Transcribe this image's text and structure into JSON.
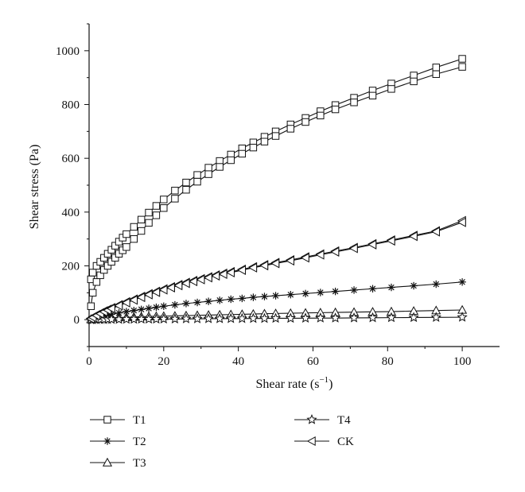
{
  "chart_data": {
    "type": "line",
    "title": "",
    "xlabel": "Shear rate (s",
    "xlabel_sup": "−1",
    "xlabel_end": ")",
    "ylabel": "Shear stress (Pa)",
    "xlim": [
      0,
      110
    ],
    "ylim": [
      -100,
      1100
    ],
    "xticks": [
      0,
      20,
      40,
      60,
      80,
      100
    ],
    "yticks": [
      0,
      200,
      400,
      600,
      800,
      1000
    ],
    "grid": false,
    "legend_position": "bottom",
    "series": [
      {
        "name": "T1",
        "marker": "square",
        "x": [
          0.5,
          1,
          2,
          3,
          4,
          5,
          6,
          7,
          8,
          9,
          10,
          12,
          14,
          16,
          18,
          20,
          23,
          26,
          29,
          32,
          35,
          38,
          41,
          44,
          47,
          50,
          54,
          58,
          62,
          66,
          71,
          76,
          81,
          87,
          93,
          100
        ],
        "y": [
          150,
          175,
          200,
          215,
          230,
          245,
          260,
          275,
          290,
          305,
          318,
          345,
          372,
          398,
          423,
          447,
          480,
          510,
          538,
          565,
          590,
          614,
          637,
          659,
          680,
          700,
          726,
          750,
          775,
          798,
          825,
          852,
          878,
          908,
          938,
          970
        ],
        "y_down": [
          50,
          100,
          140,
          165,
          185,
          200,
          215,
          230,
          245,
          258,
          270,
          300,
          330,
          360,
          388,
          415,
          450,
          483,
          513,
          541,
          568,
          593,
          617,
          640,
          662,
          683,
          710,
          735,
          759,
          782,
          808,
          833,
          858,
          886,
          913,
          940
        ]
      },
      {
        "name": "T2",
        "marker": "asterisk",
        "x": [
          0.5,
          1,
          2,
          3,
          4,
          5,
          6,
          8,
          10,
          12,
          14,
          16,
          18,
          20,
          23,
          26,
          29,
          32,
          35,
          38,
          41,
          44,
          47,
          50,
          54,
          58,
          62,
          66,
          71,
          76,
          81,
          87,
          93,
          100
        ],
        "y": [
          2,
          4,
          8,
          11,
          14,
          17,
          20,
          25,
          30,
          34,
          38,
          42,
          46,
          50,
          55,
          60,
          64,
          68,
          72,
          76,
          79,
          83,
          86,
          89,
          93,
          97,
          101,
          105,
          110,
          115,
          120,
          126,
          132,
          140
        ]
      },
      {
        "name": "T3",
        "marker": "triangle-up",
        "x": [
          0.5,
          1,
          2,
          3,
          4,
          5,
          6,
          8,
          10,
          12,
          14,
          16,
          18,
          20,
          23,
          26,
          29,
          32,
          35,
          38,
          41,
          44,
          47,
          50,
          54,
          58,
          62,
          66,
          71,
          76,
          81,
          87,
          93,
          100
        ],
        "y": [
          1,
          2,
          3,
          4,
          5,
          6,
          7,
          8,
          9,
          10,
          11,
          12,
          12.5,
          13,
          14,
          15,
          16,
          17,
          18,
          19,
          20,
          21,
          22,
          23,
          24,
          25,
          26,
          27,
          28,
          29,
          30,
          32,
          34,
          36
        ]
      },
      {
        "name": "T4",
        "marker": "star",
        "x": [
          0.5,
          1,
          2,
          3,
          4,
          5,
          6,
          8,
          10,
          12,
          14,
          16,
          18,
          20,
          23,
          26,
          29,
          32,
          35,
          38,
          41,
          44,
          47,
          50,
          54,
          58,
          62,
          66,
          71,
          76,
          81,
          87,
          93,
          100
        ],
        "y": [
          0,
          0,
          0,
          0.5,
          0.5,
          1,
          1,
          1,
          1.5,
          1.5,
          2,
          2,
          2,
          2.5,
          2.5,
          3,
          3,
          3.5,
          3.5,
          4,
          4,
          4.5,
          4.5,
          5,
          5,
          5.5,
          6,
          6,
          6.5,
          7,
          7.5,
          8,
          8.5,
          9
        ]
      },
      {
        "name": "CK",
        "marker": "triangle-left",
        "x": [
          0.5,
          1,
          2,
          3,
          4,
          5,
          6,
          8,
          10,
          12,
          14,
          16,
          18,
          20,
          22,
          24,
          26,
          28,
          30,
          32,
          34,
          36,
          38,
          41,
          44,
          47,
          50,
          54,
          58,
          62,
          66,
          71,
          76,
          81,
          87,
          93,
          100
        ],
        "y": [
          5,
          10,
          18,
          25,
          32,
          38,
          44,
          55,
          66,
          76,
          86,
          96,
          105,
          114,
          122,
          130,
          138,
          145,
          152,
          159,
          166,
          172,
          178,
          187,
          196,
          204,
          212,
          222,
          233,
          244,
          255,
          268,
          282,
          296,
          313,
          330,
          368
        ],
        "y_down": [
          3,
          8,
          15,
          22,
          29,
          35,
          41,
          52,
          63,
          73,
          83,
          93,
          102,
          111,
          119,
          127,
          135,
          142,
          149,
          156,
          163,
          169,
          175,
          184,
          193,
          201,
          209,
          219,
          230,
          241,
          252,
          265,
          279,
          293,
          310,
          327,
          362
        ]
      }
    ]
  }
}
